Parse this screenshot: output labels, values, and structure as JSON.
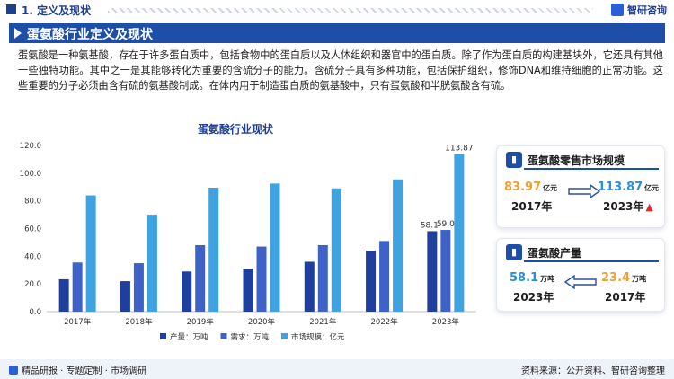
{
  "header": {
    "section": "1. 定义及现状",
    "brand": "智研咨询"
  },
  "title": "蛋氨酸行业定义及现状",
  "paragraph": "蛋氨酸是一种氨基酸，存在于许多蛋白质中，包括食物中的蛋白质以及人体组织和器官中的蛋白质。除了作为蛋白质的构建基块外，它还具有其他一些独特功能。其中之一是其能够转化为重要的含硫分子的能力。含硫分子具有多种功能，包括保护组织，修饰DNA和维持细胞的正常功能。这些重要的分子必须由含有硫的氨基酸制成。在体内用于制造蛋白质的氨基酸中，只有蛋氨酸和半胱氨酸含有硫。",
  "chart_data": {
    "type": "bar",
    "title": "蛋氨酸行业现状",
    "categories": [
      "2017年",
      "2018年",
      "2019年",
      "2020年",
      "2021年",
      "2022年",
      "2023年"
    ],
    "series": [
      {
        "name": "产量：万吨",
        "values": [
          23.4,
          22.0,
          29.0,
          31.0,
          36.0,
          44.0,
          58.1
        ],
        "color": "#1f3f9f"
      },
      {
        "name": "需求：万吨",
        "values": [
          35.5,
          35.0,
          48.0,
          47.0,
          48.0,
          51.0,
          59.0
        ],
        "color": "#3f62c8"
      },
      {
        "name": "市场规模：亿元",
        "values": [
          83.97,
          70.0,
          89.5,
          92.5,
          89.0,
          95.5,
          113.87
        ],
        "color": "#3ea3e0"
      }
    ],
    "data_labels": {
      "2023年": [
        "58.1",
        "59.0",
        "113.87"
      ]
    },
    "ylim": [
      0,
      120
    ],
    "yticks": [
      "0.0",
      "20.0",
      "40.0",
      "60.0",
      "80.0",
      "100.0",
      "120.0"
    ],
    "legend_position": "bottom",
    "grid": false
  },
  "cards": {
    "retail": {
      "title": "蛋氨酸零售市场规模",
      "start_value": "83.97",
      "start_unit": "亿元",
      "start_year": "2017年",
      "end_value": "113.87",
      "end_unit": "亿元",
      "end_year": "2023年"
    },
    "output": {
      "title": "蛋氨酸产量",
      "left_value": "58.1",
      "left_unit": "万吨",
      "left_year": "2023年",
      "right_value": "23.4",
      "right_unit": "万吨",
      "right_year": "2017年"
    }
  },
  "footer": {
    "left": "精品研报 · 专题定制 · 市场调研",
    "right": "资料来源：公开资料、智研咨询整理"
  }
}
